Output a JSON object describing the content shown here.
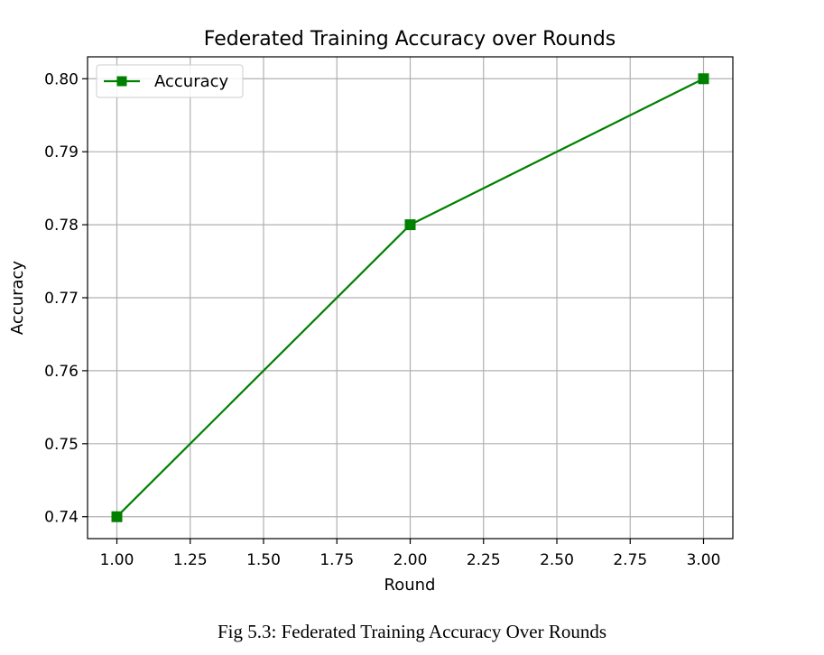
{
  "figure": {
    "caption": "Fig 5.3: Federated Training Accuracy Over Rounds"
  },
  "chart_data": {
    "type": "line",
    "title": "Federated Training Accuracy over Rounds",
    "xlabel": "Round",
    "ylabel": "Accuracy",
    "xlim": [
      0.9,
      3.1
    ],
    "ylim": [
      0.737,
      0.803
    ],
    "x_ticks": [
      1.0,
      1.25,
      1.5,
      1.75,
      2.0,
      2.25,
      2.5,
      2.75,
      3.0
    ],
    "x_tick_labels": [
      "1.00",
      "1.25",
      "1.50",
      "1.75",
      "2.00",
      "2.25",
      "2.50",
      "2.75",
      "3.00"
    ],
    "y_ticks": [
      0.74,
      0.75,
      0.76,
      0.77,
      0.78,
      0.79,
      0.8
    ],
    "y_tick_labels": [
      "0.74",
      "0.75",
      "0.76",
      "0.77",
      "0.78",
      "0.79",
      "0.80"
    ],
    "grid": true,
    "legend_position": "top-left",
    "series": [
      {
        "name": "Accuracy",
        "color": "#008000",
        "marker": "square",
        "x": [
          1,
          2,
          3
        ],
        "y": [
          0.74,
          0.78,
          0.8
        ]
      }
    ]
  }
}
